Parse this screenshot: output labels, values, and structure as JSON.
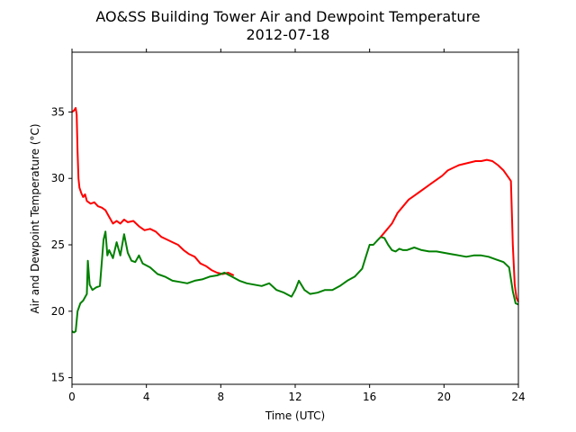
{
  "chart_data": {
    "type": "line",
    "title": "AO&SS Building Tower Air and Dewpoint Temperature",
    "subtitle": "2012-07-18",
    "xlabel": "Time (UTC)",
    "ylabel": "Air and Dewpoint Temperature (°C)",
    "xlim": [
      0,
      24
    ],
    "ylim": [
      14.5,
      39.5
    ],
    "xticks": [
      0,
      4,
      8,
      12,
      16,
      20,
      24
    ],
    "yticks": [
      15,
      20,
      25,
      30,
      35
    ],
    "grid": false,
    "series": [
      {
        "color": "#ff0000",
        "points": [
          [
            0.0,
            35.0
          ],
          [
            0.1,
            35.1
          ],
          [
            0.2,
            35.3
          ],
          [
            0.25,
            34.8
          ],
          [
            0.3,
            32.0
          ],
          [
            0.35,
            30.0
          ],
          [
            0.4,
            29.3
          ],
          [
            0.5,
            28.9
          ],
          [
            0.6,
            28.6
          ],
          [
            0.7,
            28.8
          ],
          [
            0.8,
            28.3
          ],
          [
            1.0,
            28.1
          ],
          [
            1.2,
            28.2
          ],
          [
            1.4,
            27.9
          ],
          [
            1.6,
            27.8
          ],
          [
            1.8,
            27.6
          ],
          [
            2.0,
            27.1
          ],
          [
            2.2,
            26.6
          ],
          [
            2.4,
            26.8
          ],
          [
            2.6,
            26.6
          ],
          [
            2.8,
            26.9
          ],
          [
            3.0,
            26.7
          ],
          [
            3.3,
            26.8
          ],
          [
            3.6,
            26.4
          ],
          [
            3.9,
            26.1
          ],
          [
            4.2,
            26.2
          ],
          [
            4.5,
            26.0
          ],
          [
            4.8,
            25.6
          ],
          [
            5.1,
            25.4
          ],
          [
            5.4,
            25.2
          ],
          [
            5.7,
            25.0
          ],
          [
            6.0,
            24.6
          ],
          [
            6.3,
            24.3
          ],
          [
            6.6,
            24.1
          ],
          [
            6.9,
            23.6
          ],
          [
            7.2,
            23.4
          ],
          [
            7.5,
            23.1
          ],
          [
            7.8,
            22.9
          ],
          [
            8.1,
            22.8
          ],
          [
            8.4,
            22.9
          ],
          [
            8.7,
            22.7
          ]
        ]
      },
      {
        "color": "#008000",
        "points": [
          [
            0.0,
            18.5
          ],
          [
            0.1,
            18.4
          ],
          [
            0.2,
            18.5
          ],
          [
            0.3,
            20.0
          ],
          [
            0.45,
            20.6
          ],
          [
            0.6,
            20.8
          ],
          [
            0.8,
            21.3
          ],
          [
            0.85,
            23.8
          ],
          [
            0.95,
            22.0
          ],
          [
            1.1,
            21.6
          ],
          [
            1.3,
            21.8
          ],
          [
            1.5,
            21.9
          ],
          [
            1.7,
            25.4
          ],
          [
            1.8,
            26.0
          ],
          [
            1.9,
            24.2
          ],
          [
            2.0,
            24.6
          ],
          [
            2.2,
            24.0
          ],
          [
            2.4,
            25.2
          ],
          [
            2.6,
            24.2
          ],
          [
            2.8,
            25.8
          ],
          [
            3.0,
            24.4
          ],
          [
            3.2,
            23.8
          ],
          [
            3.4,
            23.7
          ],
          [
            3.6,
            24.2
          ],
          [
            3.8,
            23.6
          ],
          [
            4.2,
            23.3
          ],
          [
            4.6,
            22.8
          ],
          [
            5.0,
            22.6
          ],
          [
            5.4,
            22.3
          ],
          [
            5.8,
            22.2
          ],
          [
            6.2,
            22.1
          ],
          [
            6.6,
            22.3
          ],
          [
            7.0,
            22.4
          ],
          [
            7.4,
            22.6
          ],
          [
            7.8,
            22.7
          ],
          [
            8.2,
            22.9
          ],
          [
            8.6,
            22.6
          ],
          [
            9.0,
            22.3
          ],
          [
            9.4,
            22.1
          ],
          [
            9.8,
            22.0
          ],
          [
            10.2,
            21.9
          ],
          [
            10.6,
            22.1
          ],
          [
            11.0,
            21.6
          ],
          [
            11.4,
            21.4
          ],
          [
            11.8,
            21.1
          ],
          [
            12.0,
            21.6
          ],
          [
            12.2,
            22.3
          ],
          [
            12.5,
            21.6
          ],
          [
            12.8,
            21.3
          ],
          [
            13.2,
            21.4
          ],
          [
            13.6,
            21.6
          ],
          [
            14.0,
            21.6
          ],
          [
            14.4,
            21.9
          ],
          [
            14.8,
            22.3
          ],
          [
            15.2,
            22.6
          ],
          [
            15.6,
            23.2
          ],
          [
            15.8,
            24.1
          ],
          [
            16.0,
            25.0
          ],
          [
            16.2,
            25.0
          ],
          [
            16.4,
            25.3
          ],
          [
            16.6,
            25.6
          ],
          [
            16.8,
            25.5
          ],
          [
            17.0,
            25.0
          ],
          [
            17.2,
            24.6
          ],
          [
            17.4,
            24.5
          ],
          [
            17.6,
            24.7
          ],
          [
            17.8,
            24.6
          ],
          [
            18.0,
            24.6
          ],
          [
            18.4,
            24.8
          ],
          [
            18.8,
            24.6
          ],
          [
            19.2,
            24.5
          ],
          [
            19.6,
            24.5
          ],
          [
            20.0,
            24.4
          ],
          [
            20.4,
            24.3
          ],
          [
            20.8,
            24.2
          ],
          [
            21.2,
            24.1
          ],
          [
            21.6,
            24.2
          ],
          [
            22.0,
            24.2
          ],
          [
            22.4,
            24.1
          ],
          [
            22.8,
            23.9
          ],
          [
            23.2,
            23.7
          ],
          [
            23.5,
            23.3
          ],
          [
            23.7,
            21.5
          ],
          [
            23.85,
            20.6
          ],
          [
            24.0,
            20.5
          ]
        ]
      },
      {
        "color": "#ff0000",
        "points": [
          [
            16.6,
            25.6
          ],
          [
            16.9,
            26.1
          ],
          [
            17.2,
            26.6
          ],
          [
            17.5,
            27.4
          ],
          [
            17.8,
            27.9
          ],
          [
            18.1,
            28.4
          ],
          [
            18.4,
            28.7
          ],
          [
            18.7,
            29.0
          ],
          [
            19.0,
            29.3
          ],
          [
            19.3,
            29.6
          ],
          [
            19.6,
            29.9
          ],
          [
            19.9,
            30.2
          ],
          [
            20.2,
            30.6
          ],
          [
            20.5,
            30.8
          ],
          [
            20.8,
            31.0
          ],
          [
            21.1,
            31.1
          ],
          [
            21.4,
            31.2
          ],
          [
            21.7,
            31.3
          ],
          [
            22.0,
            31.3
          ],
          [
            22.3,
            31.4
          ],
          [
            22.6,
            31.3
          ],
          [
            22.9,
            31.0
          ],
          [
            23.2,
            30.6
          ],
          [
            23.5,
            30.0
          ],
          [
            23.6,
            29.8
          ],
          [
            23.7,
            25.0
          ],
          [
            23.8,
            22.0
          ],
          [
            23.9,
            21.0
          ],
          [
            24.0,
            20.7
          ]
        ]
      }
    ]
  }
}
